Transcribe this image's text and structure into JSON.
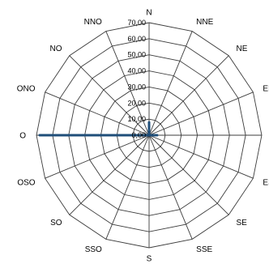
{
  "chart_data": {
    "type": "radar",
    "title": "",
    "categories": [
      "N",
      "NNE",
      "NE",
      "ENE",
      "E",
      "ESE",
      "SE",
      "SSE",
      "S",
      "SSO",
      "SO",
      "OSO",
      "O",
      "ONO",
      "NO",
      "NNO"
    ],
    "series": [
      {
        "values": [
          8,
          0,
          0,
          0,
          5,
          0,
          0,
          0,
          0,
          0,
          0,
          0,
          68,
          0,
          0,
          0
        ],
        "color": "#1f4e79"
      }
    ],
    "rlim": [
      0,
      70
    ],
    "ticks": [
      "0,00",
      "10,00",
      "20,00",
      "30,00",
      "40,00",
      "50,00",
      "60,00",
      "70,00"
    ],
    "grid": true,
    "legend": "none"
  }
}
